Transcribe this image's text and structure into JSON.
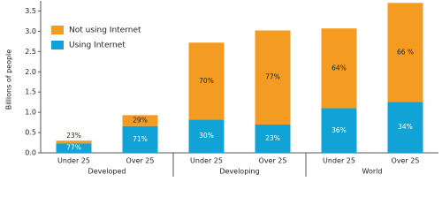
{
  "chart_data": {
    "type": "bar",
    "stacked": true,
    "y_label": "Billions of people",
    "categories": [
      "Under 25",
      "Over 25",
      "Under 25",
      "Over 25",
      "Under 25",
      "Over 25"
    ],
    "groups": [
      "Developed",
      "Developing",
      "World"
    ],
    "series": [
      {
        "name": "Using Internet",
        "color": "#11a3d6",
        "values": [
          0.23,
          0.66,
          0.82,
          0.7,
          1.1,
          1.26
        ],
        "labels": [
          "77%",
          "71%",
          "30%",
          "23%",
          "36%",
          "34%"
        ]
      },
      {
        "name": "Not using Internet",
        "color": "#f49b22",
        "values": [
          0.07,
          0.27,
          1.9,
          2.32,
          1.97,
          2.44
        ],
        "labels": [
          "23%",
          "29%",
          "70%",
          "77%",
          "64%",
          "66 %"
        ]
      }
    ],
    "ylim": [
      0,
      3.75
    ],
    "yticks": [
      {
        "value": 0,
        "label": "0.0"
      },
      0.5,
      {
        "value": 1,
        "label": "1.0"
      },
      1.5,
      {
        "value": 2,
        "label": "2.0"
      },
      2.5,
      {
        "value": 3,
        "label": "3.0"
      },
      3.5
    ]
  }
}
